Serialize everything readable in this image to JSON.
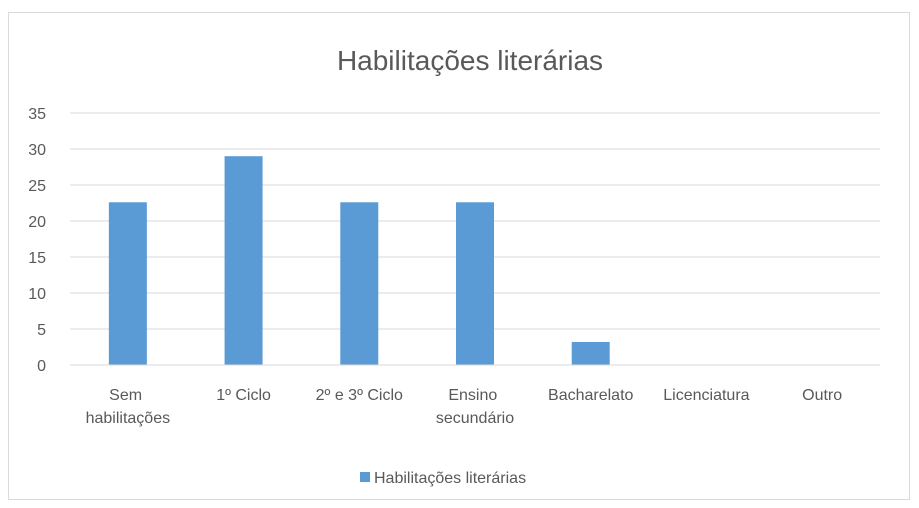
{
  "chart_data": {
    "type": "bar",
    "title": "Habilitações literárias",
    "categories": [
      "Sem habilitações",
      "1º Ciclo",
      "2º e 3º Ciclo",
      "Ensino secundário",
      "Bacharelato",
      "Licenciatura",
      "Outro"
    ],
    "series": [
      {
        "name": "Habilitações literárias",
        "color": "#5b9bd5",
        "values": [
          22.6,
          29,
          22.6,
          22.6,
          3.2,
          0,
          0
        ]
      }
    ],
    "ylim": [
      0,
      35
    ],
    "yticks": [
      0,
      5,
      10,
      15,
      20,
      25,
      30,
      35
    ],
    "grid": true,
    "legend": "bottom"
  }
}
